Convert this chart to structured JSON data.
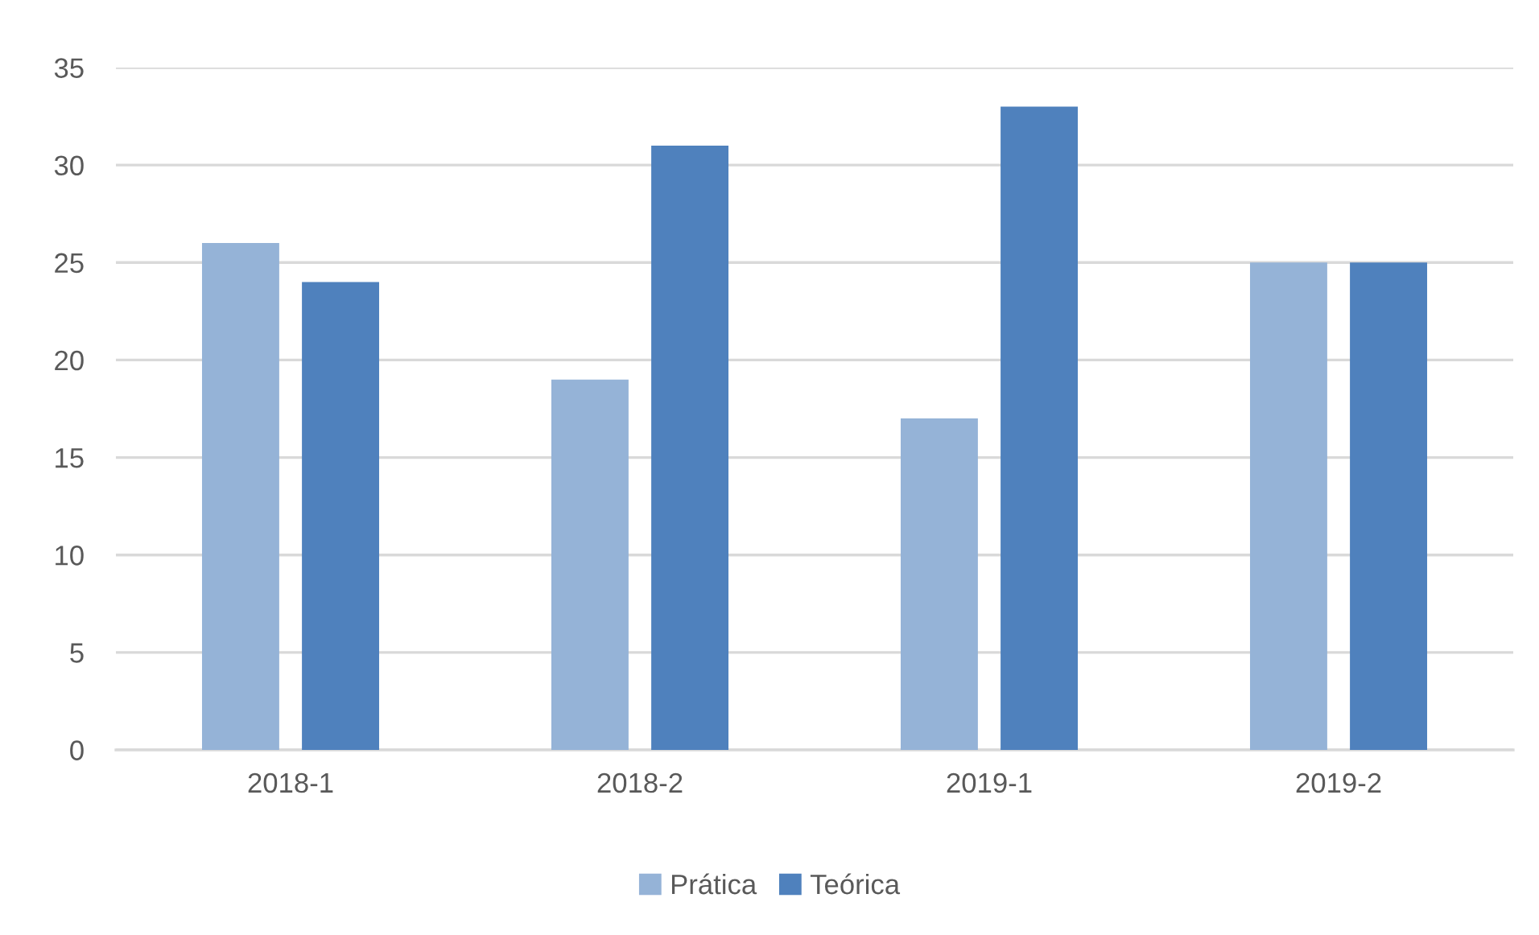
{
  "chart_data": {
    "type": "bar",
    "categories": [
      "2018-1",
      "2018-2",
      "2019-1",
      "2019-2"
    ],
    "series": [
      {
        "name": "Prática",
        "color": "#95b3d7",
        "values": [
          26,
          19,
          17,
          25
        ]
      },
      {
        "name": "Teórica",
        "color": "#4f81bd",
        "values": [
          24,
          31,
          33,
          25
        ]
      }
    ],
    "ylim": [
      0,
      35
    ],
    "yticks": [
      0,
      5,
      10,
      15,
      20,
      25,
      30,
      35
    ],
    "grid": "y",
    "legend": "bottom"
  }
}
